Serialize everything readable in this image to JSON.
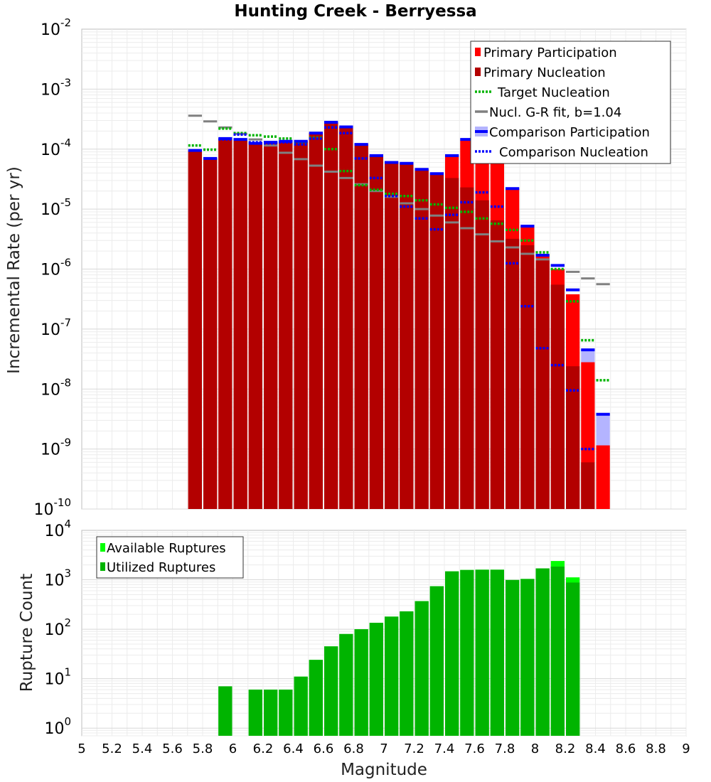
{
  "chart_data": [
    {
      "type": "bar",
      "title": "Hunting Creek - Berryessa",
      "xlabel": "",
      "ylabel": "Incremental Rate (per yr)",
      "yscale": "log",
      "ylim": [
        1e-10,
        0.01
      ],
      "xlim": [
        5,
        9
      ],
      "bin_width": 0.1,
      "legend_placement": "top-right",
      "legend": [
        "Primary Participation",
        "Primary Nucleation",
        "Target Nucleation",
        "Nucl. G-R fit, b=1.04",
        "Comparison Participation",
        "Comparison Nucleation"
      ],
      "colors": {
        "primary_participation": "#ff0000",
        "primary_nucleation": "#b30000",
        "target_nucleation": "#00b400",
        "gr_fit": "#808080",
        "comparison_participation": "#0000ff",
        "comparison_participation_fill": "#b4b4ff",
        "comparison_nucleation": "#0000ff"
      },
      "x": [
        5.75,
        5.85,
        5.95,
        6.05,
        6.15,
        6.25,
        6.35,
        6.45,
        6.55,
        6.65,
        6.75,
        6.85,
        6.95,
        7.05,
        7.15,
        7.25,
        7.35,
        7.45,
        7.55,
        7.65,
        7.75,
        7.85,
        7.95,
        8.05,
        8.15,
        8.25,
        8.35,
        8.45
      ],
      "series": [
        {
          "name": "Primary Participation",
          "values": [
            9.5e-05,
            7e-05,
            0.00015,
            0.00014,
            0.000125,
            0.00013,
            0.000135,
            0.000135,
            0.000185,
            0.00028,
            0.000235,
            0.00012,
            7.8e-05,
            6e-05,
            5.8e-05,
            4.6e-05,
            3.9e-05,
            7.8e-05,
            0.00014,
            0.0001,
            7.5e-05,
            2.2e-05,
            5.2e-06,
            1.7e-06,
            1e-06,
            3.8e-07,
            2.8e-08,
            1.15e-09
          ]
        },
        {
          "name": "Primary Nucleation",
          "values": [
            9.5e-05,
            7e-05,
            0.00015,
            0.00014,
            0.000125,
            0.00013,
            0.000135,
            0.000135,
            0.000185,
            0.00028,
            0.000235,
            0.00012,
            7.8e-05,
            6e-05,
            5.8e-05,
            4.5e-05,
            3.7e-05,
            3.3e-05,
            2.3e-05,
            1.4e-05,
            6.5e-06,
            3.2e-06,
            2.5e-06,
            1.4e-06,
            5.5e-07,
            2.4e-08,
            6e-10,
            null
          ]
        },
        {
          "name": "Target Nucleation",
          "values": [
            0.000115,
            9.8e-05,
            0.00022,
            0.000185,
            0.00017,
            0.000162,
            0.00015,
            0.000125,
            0.000155,
            0.0001,
            4.3e-05,
            2.5e-05,
            2.1e-05,
            1.8e-05,
            1.65e-05,
            1.4e-05,
            1.2e-05,
            1.05e-05,
            9e-06,
            7e-06,
            5.7e-06,
            4.5e-06,
            3e-06,
            1.9e-06,
            1e-06,
            2.9e-07,
            6.5e-08,
            1.4e-08
          ]
        },
        {
          "name": "Nucl. G-R fit, b=1.04",
          "values": [
            0.00036,
            0.00029,
            0.00023,
            0.00018,
            0.000145,
            0.000115,
            8.7e-05,
            6.8e-05,
            5.3e-05,
            4.2e-05,
            3.3e-05,
            2.6e-05,
            2e-05,
            1.6e-05,
            1.25e-05,
            1e-05,
            7.8e-06,
            6e-06,
            4.8e-06,
            3.8e-06,
            2.9e-06,
            2.3e-06,
            1.8e-06,
            1.45e-06,
            1.15e-06,
            9e-07,
            7e-07,
            5.6e-07
          ]
        },
        {
          "name": "Comparison Participation",
          "values": [
            9.5e-05,
            7e-05,
            0.00015,
            0.000145,
            0.000125,
            0.00013,
            0.000135,
            0.000135,
            0.000185,
            0.00028,
            0.000235,
            0.00012,
            7.8e-05,
            6e-05,
            5.8e-05,
            4.6e-05,
            3.9e-05,
            7.8e-05,
            0.000145,
            0.00017,
            8e-05,
            2.2e-05,
            5.2e-06,
            1.7e-06,
            1.15e-06,
            4.5e-07,
            4.5e-08,
            3.8e-09
          ]
        },
        {
          "name": "Comparison Nucleation",
          "values": [
            null,
            null,
            0.000145,
            0.000175,
            0.00013,
            0.000125,
            0.00013,
            0.00012,
            0.00015,
            0.00023,
            0.000185,
            7e-05,
            3.3e-05,
            1.65e-05,
            1.1e-05,
            7e-06,
            4.6e-06,
            8e-06,
            1.3e-05,
            1.9e-05,
            1.1e-05,
            1.25e-06,
            2.4e-07,
            4.8e-08,
            2.5e-08,
            9.5e-09,
            1e-09,
            null
          ]
        }
      ],
      "yticks": [
        {
          "base": "10",
          "exp": "-10",
          "value": 1e-10
        },
        {
          "base": "10",
          "exp": "-9",
          "value": 1e-09
        },
        {
          "base": "10",
          "exp": "-8",
          "value": 1e-08
        },
        {
          "base": "10",
          "exp": "-7",
          "value": 1e-07
        },
        {
          "base": "10",
          "exp": "-6",
          "value": 1e-06
        },
        {
          "base": "10",
          "exp": "-5",
          "value": 1e-05
        },
        {
          "base": "10",
          "exp": "-4",
          "value": 0.0001
        },
        {
          "base": "10",
          "exp": "-3",
          "value": 0.001
        },
        {
          "base": "10",
          "exp": "-2",
          "value": 0.01
        }
      ],
      "grid": true
    },
    {
      "type": "bar",
      "title": "",
      "xlabel": "Magnitude",
      "ylabel": "Rupture Count",
      "yscale": "log",
      "ylim": [
        0.7,
        10000
      ],
      "xlim": [
        5,
        9
      ],
      "bin_width": 0.1,
      "legend_placement": "top-left",
      "legend": [
        "Available Ruptures",
        "Utilized Ruptures"
      ],
      "colors": {
        "available": "#00ff00",
        "utilized": "#00b400"
      },
      "x": [
        5.95,
        6.15,
        6.25,
        6.35,
        6.45,
        6.55,
        6.65,
        6.75,
        6.85,
        6.95,
        7.05,
        7.15,
        7.25,
        7.35,
        7.45,
        7.55,
        7.65,
        7.75,
        7.85,
        7.95,
        8.05,
        8.15,
        8.25
      ],
      "series": [
        {
          "name": "Available Ruptures",
          "values": [
            7,
            6,
            6,
            6,
            11,
            24,
            45,
            80,
            100,
            135,
            180,
            230,
            370,
            740,
            1480,
            1580,
            1600,
            1600,
            990,
            1040,
            1700,
            2400,
            1120
          ]
        },
        {
          "name": "Utilized Ruptures",
          "values": [
            7,
            6,
            6,
            6,
            11,
            24,
            45,
            80,
            100,
            135,
            180,
            230,
            370,
            740,
            1480,
            1580,
            1600,
            1600,
            990,
            1040,
            1700,
            1850,
            880
          ]
        }
      ],
      "yticks": [
        {
          "base": "10",
          "exp": "0",
          "value": 1
        },
        {
          "base": "10",
          "exp": "1",
          "value": 10
        },
        {
          "base": "10",
          "exp": "2",
          "value": 100
        },
        {
          "base": "10",
          "exp": "3",
          "value": 1000
        },
        {
          "base": "10",
          "exp": "4",
          "value": 10000
        }
      ],
      "xticks": [
        "5",
        "5.2",
        "5.4",
        "5.6",
        "5.8",
        "6",
        "6.2",
        "6.4",
        "6.6",
        "6.8",
        "7",
        "7.2",
        "7.4",
        "7.6",
        "7.8",
        "8",
        "8.2",
        "8.4",
        "8.6",
        "8.8",
        "9"
      ],
      "grid": true
    }
  ]
}
